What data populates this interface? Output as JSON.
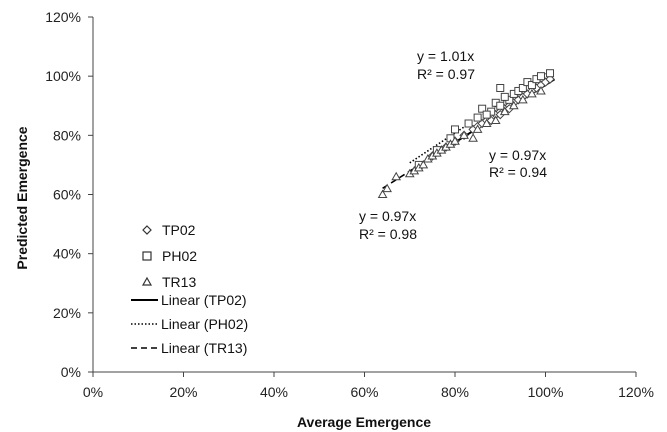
{
  "chart_data": {
    "type": "scatter",
    "xlabel": "Average Emergence",
    "ylabel": "Predicted Emergence",
    "xlim": [
      0,
      1.2
    ],
    "ylim": [
      0,
      1.2
    ],
    "x_ticks": [
      0,
      0.2,
      0.4,
      0.6,
      0.8,
      1.0,
      1.2
    ],
    "y_ticks": [
      0,
      0.2,
      0.4,
      0.6,
      0.8,
      1.0,
      1.2
    ],
    "x_tick_labels": [
      "0%",
      "20%",
      "40%",
      "60%",
      "80%",
      "100%",
      "120%"
    ],
    "y_tick_labels": [
      "0%",
      "20%",
      "40%",
      "60%",
      "80%",
      "100%",
      "120%"
    ],
    "grid": false,
    "legend_position": "bottom-left",
    "series": [
      {
        "name": "TP02",
        "marker": "diamond",
        "points": [
          [
            0.75,
            0.73
          ],
          [
            0.78,
            0.76
          ],
          [
            0.8,
            0.78
          ],
          [
            0.82,
            0.8
          ],
          [
            0.84,
            0.82
          ],
          [
            0.85,
            0.83
          ],
          [
            0.86,
            0.84
          ],
          [
            0.87,
            0.85
          ],
          [
            0.88,
            0.86
          ],
          [
            0.89,
            0.87
          ],
          [
            0.9,
            0.88
          ],
          [
            0.91,
            0.89
          ],
          [
            0.92,
            0.9
          ],
          [
            0.93,
            0.91
          ],
          [
            0.94,
            0.92
          ],
          [
            0.95,
            0.93
          ],
          [
            0.96,
            0.94
          ],
          [
            0.97,
            0.95
          ],
          [
            0.98,
            0.96
          ],
          [
            0.99,
            0.97
          ],
          [
            1.0,
            0.98
          ],
          [
            1.01,
            0.99
          ],
          [
            0.88,
            0.85
          ],
          [
            0.9,
            0.87
          ],
          [
            0.92,
            0.89
          ]
        ]
      },
      {
        "name": "PH02",
        "marker": "square",
        "points": [
          [
            0.72,
            0.7
          ],
          [
            0.76,
            0.75
          ],
          [
            0.79,
            0.79
          ],
          [
            0.8,
            0.82
          ],
          [
            0.83,
            0.84
          ],
          [
            0.85,
            0.86
          ],
          [
            0.86,
            0.89
          ],
          [
            0.88,
            0.88
          ],
          [
            0.89,
            0.91
          ],
          [
            0.9,
            0.9
          ],
          [
            0.9,
            0.96
          ],
          [
            0.92,
            0.92
          ],
          [
            0.93,
            0.94
          ],
          [
            0.94,
            0.95
          ],
          [
            0.95,
            0.96
          ],
          [
            0.96,
            0.98
          ],
          [
            0.97,
            0.97
          ],
          [
            0.98,
            0.99
          ],
          [
            0.99,
            1.0
          ],
          [
            1.01,
            1.01
          ],
          [
            0.87,
            0.87
          ],
          [
            0.91,
            0.93
          ]
        ]
      },
      {
        "name": "TR13",
        "marker": "triangle",
        "points": [
          [
            0.64,
            0.6
          ],
          [
            0.65,
            0.62
          ],
          [
            0.67,
            0.66
          ],
          [
            0.7,
            0.67
          ],
          [
            0.71,
            0.68
          ],
          [
            0.72,
            0.69
          ],
          [
            0.73,
            0.7
          ],
          [
            0.74,
            0.72
          ],
          [
            0.75,
            0.73
          ],
          [
            0.76,
            0.74
          ],
          [
            0.77,
            0.75
          ],
          [
            0.78,
            0.76
          ],
          [
            0.79,
            0.77
          ],
          [
            0.8,
            0.78
          ],
          [
            0.82,
            0.8
          ],
          [
            0.84,
            0.79
          ],
          [
            0.85,
            0.82
          ],
          [
            0.87,
            0.84
          ],
          [
            0.89,
            0.85
          ],
          [
            0.91,
            0.88
          ],
          [
            0.93,
            0.9
          ],
          [
            0.95,
            0.92
          ],
          [
            0.97,
            0.94
          ],
          [
            0.99,
            0.95
          ]
        ]
      }
    ],
    "trendlines": [
      {
        "name": "Linear (TP02)",
        "style": "solid",
        "slope": 0.97,
        "x_range": [
          0.74,
          1.02
        ]
      },
      {
        "name": "Linear (PH02)",
        "style": "dotted",
        "slope": 1.01,
        "x_range": [
          0.7,
          1.01
        ]
      },
      {
        "name": "Linear (TR13)",
        "style": "dashed",
        "slope": 0.97,
        "x_range": [
          0.64,
          1.0
        ]
      }
    ],
    "annotations": [
      {
        "id": "ph02",
        "line1": "y = 1.01x",
        "line2": "R² = 0.97"
      },
      {
        "id": "tp02",
        "line1": "y = 0.97x",
        "line2": "R² = 0.94"
      },
      {
        "id": "tr13",
        "line1": "y = 0.97x",
        "line2": "R² = 0.98"
      }
    ]
  }
}
